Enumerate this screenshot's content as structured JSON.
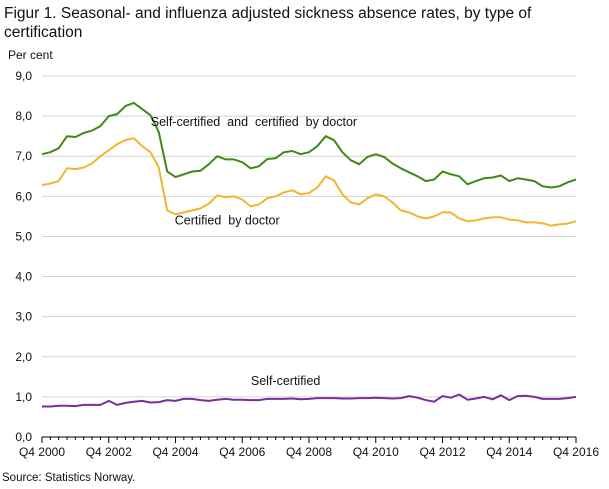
{
  "colors": {
    "series1": "#3f8a14",
    "series2": "#f2b531",
    "series3": "#7a2e9a",
    "grid": "#d3d3d3",
    "axis": "#000000",
    "text": "#111111"
  },
  "source": "Source: Statistics Norway.",
  "chart_data": {
    "type": "line",
    "title": "Figur 1. Seasonal- and influenza adjusted sickness absence rates, by type of certification",
    "ylabel": "Per cent",
    "xlabel": "",
    "ylim": [
      0,
      9
    ],
    "yticks": [
      "0,0",
      "1,0",
      "2,0",
      "3,0",
      "4,0",
      "5,0",
      "6,0",
      "7,0",
      "8,0",
      "9,0"
    ],
    "xlim": [
      2000.75,
      2016.75
    ],
    "x_tick_labels": [
      "Q4 2000",
      "Q4 2002",
      "Q4 2004",
      "Q4 2006",
      "Q4 2008",
      "Q4 2010",
      "Q4 2012",
      "Q4 2014",
      "Q4 2016"
    ],
    "x_tick_values": [
      2000.75,
      2002.75,
      2004.75,
      2006.75,
      2008.75,
      2010.75,
      2012.75,
      2014.75,
      2016.75
    ],
    "grid": true,
    "x": [
      2000.75,
      2001.0,
      2001.25,
      2001.5,
      2001.75,
      2002.0,
      2002.25,
      2002.5,
      2002.75,
      2003.0,
      2003.25,
      2003.5,
      2003.75,
      2004.0,
      2004.25,
      2004.5,
      2004.75,
      2005.0,
      2005.25,
      2005.5,
      2005.75,
      2006.0,
      2006.25,
      2006.5,
      2006.75,
      2007.0,
      2007.25,
      2007.5,
      2007.75,
      2008.0,
      2008.25,
      2008.5,
      2008.75,
      2009.0,
      2009.25,
      2009.5,
      2009.75,
      2010.0,
      2010.25,
      2010.5,
      2010.75,
      2011.0,
      2011.25,
      2011.5,
      2011.75,
      2012.0,
      2012.25,
      2012.5,
      2012.75,
      2013.0,
      2013.25,
      2013.5,
      2013.75,
      2014.0,
      2014.25,
      2014.5,
      2014.75,
      2015.0,
      2015.25,
      2015.5,
      2015.75,
      2016.0,
      2016.25,
      2016.5,
      2016.75
    ],
    "series": [
      {
        "name": "Self-certified  and  certified  by doctor",
        "label_at": [
          2007.1,
          7.75
        ],
        "values": [
          7.05,
          7.1,
          7.2,
          7.5,
          7.48,
          7.58,
          7.64,
          7.75,
          8.0,
          8.05,
          8.25,
          8.33,
          8.18,
          8.02,
          7.6,
          6.62,
          6.48,
          6.55,
          6.62,
          6.64,
          6.8,
          7.0,
          6.92,
          6.92,
          6.85,
          6.7,
          6.75,
          6.93,
          6.95,
          7.1,
          7.13,
          7.05,
          7.1,
          7.25,
          7.5,
          7.4,
          7.1,
          6.9,
          6.8,
          6.98,
          7.05,
          6.98,
          6.82,
          6.7,
          6.6,
          6.5,
          6.38,
          6.42,
          6.62,
          6.55,
          6.5,
          6.3,
          6.38,
          6.45,
          6.47,
          6.52,
          6.38,
          6.45,
          6.42,
          6.38,
          6.25,
          6.22,
          6.25,
          6.35,
          6.42
        ]
      },
      {
        "name": "Certified  by doctor",
        "label_at": [
          2006.3,
          5.3
        ],
        "values": [
          6.28,
          6.32,
          6.38,
          6.7,
          6.68,
          6.72,
          6.82,
          7.0,
          7.15,
          7.3,
          7.4,
          7.45,
          7.25,
          7.1,
          6.72,
          5.65,
          5.55,
          5.6,
          5.65,
          5.7,
          5.82,
          6.02,
          5.98,
          6.0,
          5.92,
          5.75,
          5.8,
          5.95,
          6.0,
          6.1,
          6.15,
          6.05,
          6.08,
          6.22,
          6.5,
          6.4,
          6.05,
          5.85,
          5.8,
          5.95,
          6.05,
          6.0,
          5.85,
          5.65,
          5.6,
          5.5,
          5.45,
          5.5,
          5.6,
          5.6,
          5.45,
          5.38,
          5.4,
          5.45,
          5.48,
          5.48,
          5.42,
          5.4,
          5.35,
          5.35,
          5.33,
          5.27,
          5.3,
          5.32,
          5.38
        ]
      },
      {
        "name": "Self-certified",
        "label_at": [
          2008.05,
          1.3
        ],
        "values": [
          0.76,
          0.76,
          0.78,
          0.78,
          0.77,
          0.8,
          0.8,
          0.8,
          0.9,
          0.8,
          0.85,
          0.88,
          0.9,
          0.86,
          0.87,
          0.92,
          0.9,
          0.95,
          0.95,
          0.92,
          0.9,
          0.93,
          0.95,
          0.93,
          0.93,
          0.92,
          0.92,
          0.95,
          0.95,
          0.95,
          0.96,
          0.94,
          0.95,
          0.97,
          0.97,
          0.97,
          0.96,
          0.96,
          0.97,
          0.97,
          0.98,
          0.97,
          0.96,
          0.97,
          1.02,
          0.98,
          0.92,
          0.88,
          1.02,
          0.98,
          1.06,
          0.93,
          0.96,
          1.0,
          0.94,
          1.04,
          0.92,
          1.02,
          1.03,
          1.0,
          0.95,
          0.95,
          0.95,
          0.97,
          1.0
        ]
      }
    ]
  }
}
